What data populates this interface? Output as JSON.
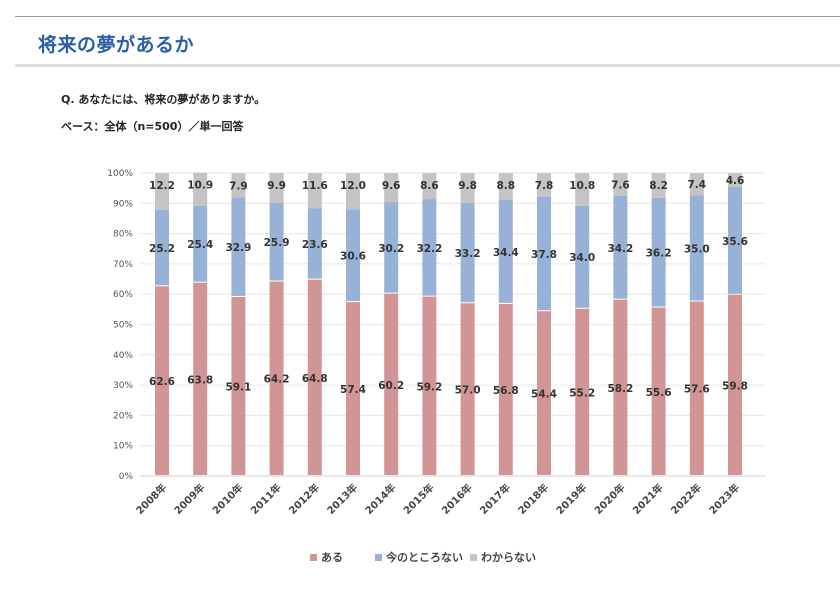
{
  "header": {
    "title": "将来の夢があるか"
  },
  "survey": {
    "question": "Q. あなたには、将来の夢がありますか。",
    "base": "ベース：全体（n=500）／単一回答"
  },
  "colors": {
    "aru": "#d29595",
    "imanotokoronai": "#98b1d6",
    "wakaranai": "#c4c4c4",
    "title": "#2a5ea8"
  },
  "chart_data": {
    "type": "bar",
    "stacked": "percent",
    "title": "",
    "xlabel": "",
    "ylabel": "",
    "ylim": [
      0,
      100
    ],
    "yticks": [
      "0%",
      "10%",
      "20%",
      "30%",
      "40%",
      "50%",
      "60%",
      "70%",
      "80%",
      "90%",
      "100%"
    ],
    "grid": true,
    "legend_position": "bottom",
    "categories": [
      "2008年",
      "2009年",
      "2010年",
      "2011年",
      "2012年",
      "2013年",
      "2014年",
      "2015年",
      "2016年",
      "2017年",
      "2018年",
      "2019年",
      "2020年",
      "2021年",
      "2022年",
      "2023年"
    ],
    "series": [
      {
        "name": "ある",
        "color": "#d29595",
        "values": [
          62.6,
          63.8,
          59.1,
          64.2,
          64.8,
          57.4,
          60.2,
          59.2,
          57.0,
          56.8,
          54.4,
          55.2,
          58.2,
          55.6,
          57.6,
          59.8
        ]
      },
      {
        "name": "今のところない",
        "color": "#98b1d6",
        "values": [
          25.2,
          25.4,
          32.9,
          25.9,
          23.6,
          30.6,
          30.2,
          32.2,
          33.2,
          34.4,
          37.8,
          34.0,
          34.2,
          36.2,
          35.0,
          35.6
        ]
      },
      {
        "name": "わからない",
        "color": "#c4c4c4",
        "values": [
          12.2,
          10.9,
          7.9,
          9.9,
          11.6,
          12.0,
          9.6,
          8.6,
          9.8,
          8.8,
          7.8,
          10.8,
          7.6,
          8.2,
          7.4,
          4.6
        ]
      }
    ]
  }
}
